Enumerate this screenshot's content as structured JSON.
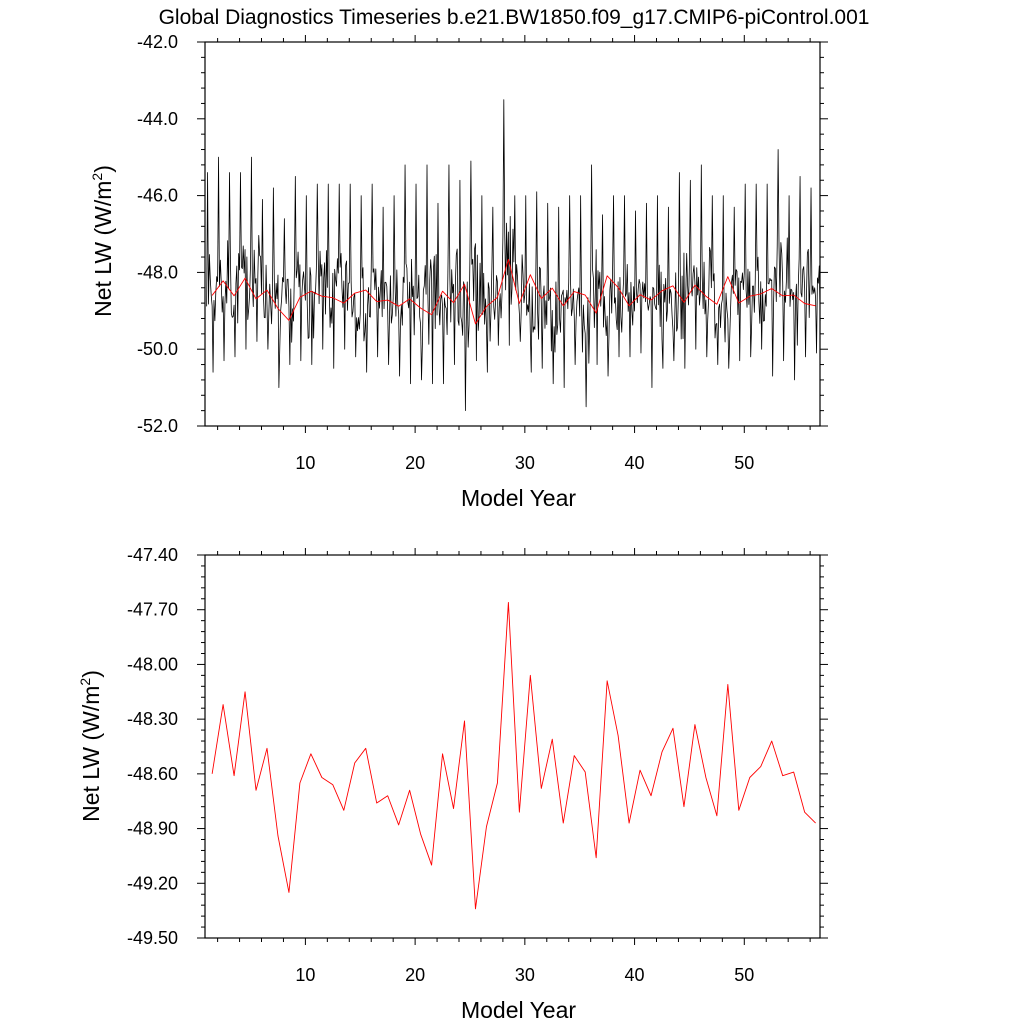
{
  "title": "Global Diagnostics Timeseries b.e21.BW1850.f09_g17.CMIP6-piControl.001",
  "chart_data": [
    {
      "type": "line",
      "xlabel": "Model Year",
      "ylabel": "Net LW (W/m",
      "ylabel_sup": "2",
      "ylabel_close": ")",
      "xlim": [
        0.85,
        56.9
      ],
      "ylim": [
        -52.0,
        -42.0
      ],
      "xticks": [
        10,
        20,
        30,
        40,
        50
      ],
      "xtick_labels": [
        "10",
        "20",
        "30",
        "40",
        "50"
      ],
      "yticks": [
        -52.0,
        -50.0,
        -48.0,
        -46.0,
        -44.0,
        -42.0
      ],
      "ytick_labels": [
        "-52.0",
        "-50.0",
        "-48.0",
        "-46.0",
        "-44.0",
        "-42.0"
      ],
      "series": [
        {
          "color": "#000000",
          "note_monthly": true,
          "seed": 7,
          "peak_values": [
            -45.4,
            -45.0,
            -45.4,
            -45.4,
            -45.0,
            -46.1,
            -45.8,
            -46.6,
            -45.5,
            -46.0,
            -45.7,
            -45.7,
            -45.7,
            -45.7,
            -46.0,
            -45.7,
            -46.3,
            -46.0,
            -45.2,
            -45.7,
            -45.2,
            -46.2,
            -45.2,
            -45.6,
            -45.1,
            -46.0,
            -46.3,
            -43.5,
            -46.0,
            -46.0,
            -45.9,
            -46.2,
            -46.3,
            -46.0,
            -46.0,
            -45.2,
            -46.5,
            -46.0,
            -46.0,
            -46.4,
            -46.2,
            -46.0,
            -46.3,
            -45.4,
            -45.6,
            -45.2,
            -46.0,
            -46.0,
            -46.3,
            -45.7,
            -45.7,
            -45.7,
            -44.8,
            -46.0,
            -45.5,
            -45.8
          ],
          "trough_values": [
            -50.6,
            -50.3,
            -50.2,
            -50.0,
            -49.8,
            -50.0,
            -51.0,
            -50.4,
            -50.3,
            -50.4,
            -50.0,
            -50.5,
            -50.0,
            -50.2,
            -50.6,
            -50.2,
            -50.4,
            -50.7,
            -50.9,
            -50.8,
            -50.9,
            -50.9,
            -50.4,
            -51.6,
            -50.3,
            -50.6,
            -49.9,
            -49.9,
            -49.8,
            -50.6,
            -50.5,
            -50.9,
            -51.0,
            -50.4,
            -51.5,
            -50.4,
            -50.7,
            -50.2,
            -50.2,
            -50.1,
            -51.0,
            -50.5,
            -50.3,
            -50.5,
            -50.0,
            -50.2,
            -50.4,
            -50.5,
            -50.3,
            -50.2,
            -50.0,
            -50.7,
            -50.3,
            -50.8,
            -50.2,
            -50.1
          ]
        },
        {
          "color": "#ff0000",
          "x": [
            1.5,
            2.5,
            3.5,
            4.5,
            5.5,
            6.5,
            7.5,
            8.5,
            9.5,
            10.5,
            11.5,
            12.5,
            13.5,
            14.5,
            15.5,
            16.5,
            17.5,
            18.5,
            19.5,
            20.5,
            21.5,
            22.5,
            23.5,
            24.5,
            25.5,
            26.5,
            27.5,
            28.5,
            29.5,
            30.5,
            31.5,
            32.5,
            33.5,
            34.5,
            35.5,
            36.5,
            37.5,
            38.5,
            39.5,
            40.5,
            41.5,
            42.5,
            43.5,
            44.5,
            45.5,
            46.5,
            47.5,
            48.5,
            49.5,
            50.5,
            51.5,
            52.5,
            53.5,
            54.5,
            55.5,
            56.5
          ],
          "values": [
            -48.6,
            -48.22,
            -48.61,
            -48.15,
            -48.69,
            -48.46,
            -48.94,
            -49.25,
            -48.65,
            -48.49,
            -48.62,
            -48.66,
            -48.8,
            -48.54,
            -48.46,
            -48.76,
            -48.72,
            -48.88,
            -48.69,
            -48.93,
            -49.1,
            -48.49,
            -48.79,
            -48.31,
            -49.34,
            -48.89,
            -48.65,
            -47.66,
            -48.81,
            -48.06,
            -48.68,
            -48.41,
            -48.87,
            -48.5,
            -48.59,
            -49.06,
            -48.09,
            -48.39,
            -48.87,
            -48.58,
            -48.72,
            -48.48,
            -48.35,
            -48.78,
            -48.33,
            -48.62,
            -48.83,
            -48.11,
            -48.8,
            -48.62,
            -48.56,
            -48.42,
            -48.61,
            -48.59,
            -48.81,
            -48.87
          ]
        }
      ]
    },
    {
      "type": "line",
      "xlabel": "Model Year",
      "ylabel": "Net LW (W/m",
      "ylabel_sup": "2",
      "ylabel_close": ")",
      "xlim": [
        0.85,
        56.9
      ],
      "ylim": [
        -49.5,
        -47.4
      ],
      "xticks": [
        10,
        20,
        30,
        40,
        50
      ],
      "xtick_labels": [
        "10",
        "20",
        "30",
        "40",
        "50"
      ],
      "yticks": [
        -49.5,
        -49.2,
        -48.9,
        -48.6,
        -48.3,
        -48.0,
        -47.7,
        -47.4
      ],
      "ytick_labels": [
        "-49.50",
        "-49.20",
        "-48.90",
        "-48.60",
        "-48.30",
        "-48.00",
        "-47.70",
        "-47.40"
      ],
      "series": [
        {
          "color": "#ff0000",
          "x": [
            1.5,
            2.5,
            3.5,
            4.5,
            5.5,
            6.5,
            7.5,
            8.5,
            9.5,
            10.5,
            11.5,
            12.5,
            13.5,
            14.5,
            15.5,
            16.5,
            17.5,
            18.5,
            19.5,
            20.5,
            21.5,
            22.5,
            23.5,
            24.5,
            25.5,
            26.5,
            27.5,
            28.5,
            29.5,
            30.5,
            31.5,
            32.5,
            33.5,
            34.5,
            35.5,
            36.5,
            37.5,
            38.5,
            39.5,
            40.5,
            41.5,
            42.5,
            43.5,
            44.5,
            45.5,
            46.5,
            47.5,
            48.5,
            49.5,
            50.5,
            51.5,
            52.5,
            53.5,
            54.5,
            55.5,
            56.5
          ],
          "values": [
            -48.6,
            -48.22,
            -48.61,
            -48.15,
            -48.69,
            -48.46,
            -48.94,
            -49.25,
            -48.65,
            -48.49,
            -48.62,
            -48.66,
            -48.8,
            -48.54,
            -48.46,
            -48.76,
            -48.72,
            -48.88,
            -48.69,
            -48.93,
            -49.1,
            -48.49,
            -48.79,
            -48.31,
            -49.34,
            -48.89,
            -48.65,
            -47.66,
            -48.81,
            -48.06,
            -48.68,
            -48.41,
            -48.87,
            -48.5,
            -48.59,
            -49.06,
            -48.09,
            -48.39,
            -48.87,
            -48.58,
            -48.72,
            -48.48,
            -48.35,
            -48.78,
            -48.33,
            -48.62,
            -48.83,
            -48.11,
            -48.8,
            -48.62,
            -48.56,
            -48.42,
            -48.61,
            -48.59,
            -48.81,
            -48.87
          ]
        }
      ]
    }
  ]
}
